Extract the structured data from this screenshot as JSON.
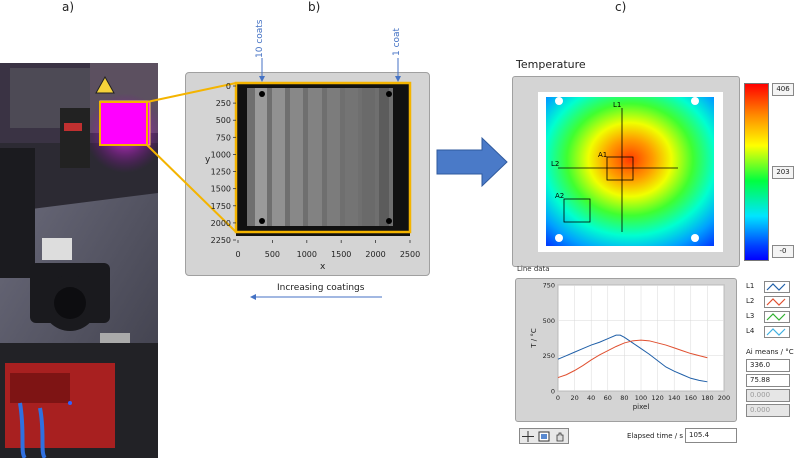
{
  "panels": {
    "a": "a)",
    "b": "b)",
    "c": "c)"
  },
  "panel_b": {
    "top_label_left": "10 coats",
    "top_label_right": "1 coat",
    "bottom_label": "Increasing coatings",
    "ylabel": "y",
    "xlabel": "x",
    "yticks": [
      "0",
      "250",
      "500",
      "750",
      "1000",
      "1250",
      "1500",
      "1750",
      "2000",
      "2250"
    ],
    "xticks": [
      "0",
      "500",
      "1000",
      "1500",
      "2000",
      "2500"
    ]
  },
  "panel_c": {
    "title": "Temperature",
    "scale_values": [
      "406",
      "203",
      "-0"
    ],
    "thermo_labels": {
      "l1": "L1",
      "l2": "L2",
      "a1": "A1",
      "a2": "A2"
    },
    "line_data_label": "Line data",
    "legend": [
      {
        "name": "L1",
        "color": "#1f5fa8"
      },
      {
        "name": "L2",
        "color": "#e05030"
      },
      {
        "name": "L3",
        "color": "#30b030"
      },
      {
        "name": "L4",
        "color": "#40b0e0"
      }
    ],
    "means_label": "Ai means / °C",
    "means": [
      {
        "value": "336.0",
        "dim": false
      },
      {
        "value": "75.88",
        "dim": false
      },
      {
        "value": "0.000",
        "dim": true
      },
      {
        "value": "0.000",
        "dim": true
      }
    ],
    "elapsed_label": "Elapsed time / s",
    "elapsed_value": "105.4"
  },
  "chart_data": {
    "type": "line",
    "xlabel": "pixel",
    "ylabel": "T / °C",
    "xlim": [
      0,
      200
    ],
    "ylim": [
      0,
      750
    ],
    "xticks": [
      0,
      20,
      40,
      60,
      80,
      100,
      120,
      140,
      160,
      180,
      200
    ],
    "yticks": [
      0,
      250,
      500,
      750
    ],
    "grid": true,
    "series": [
      {
        "name": "L1",
        "color": "#1f5fa8",
        "x": [
          0,
          10,
          20,
          30,
          40,
          50,
          60,
          70,
          75,
          80,
          90,
          100,
          110,
          120,
          130,
          140,
          150,
          160,
          170,
          180
        ],
        "y": [
          225,
          250,
          275,
          300,
          325,
          345,
          370,
          395,
          395,
          380,
          340,
          300,
          260,
          215,
          170,
          140,
          115,
          90,
          75,
          65
        ]
      },
      {
        "name": "L2",
        "color": "#e05030",
        "x": [
          0,
          10,
          20,
          30,
          40,
          50,
          60,
          70,
          80,
          90,
          100,
          110,
          120,
          130,
          140,
          150,
          160,
          170,
          180
        ],
        "y": [
          95,
          115,
          145,
          180,
          220,
          255,
          285,
          315,
          340,
          355,
          360,
          355,
          340,
          325,
          305,
          285,
          265,
          250,
          235
        ]
      }
    ]
  }
}
